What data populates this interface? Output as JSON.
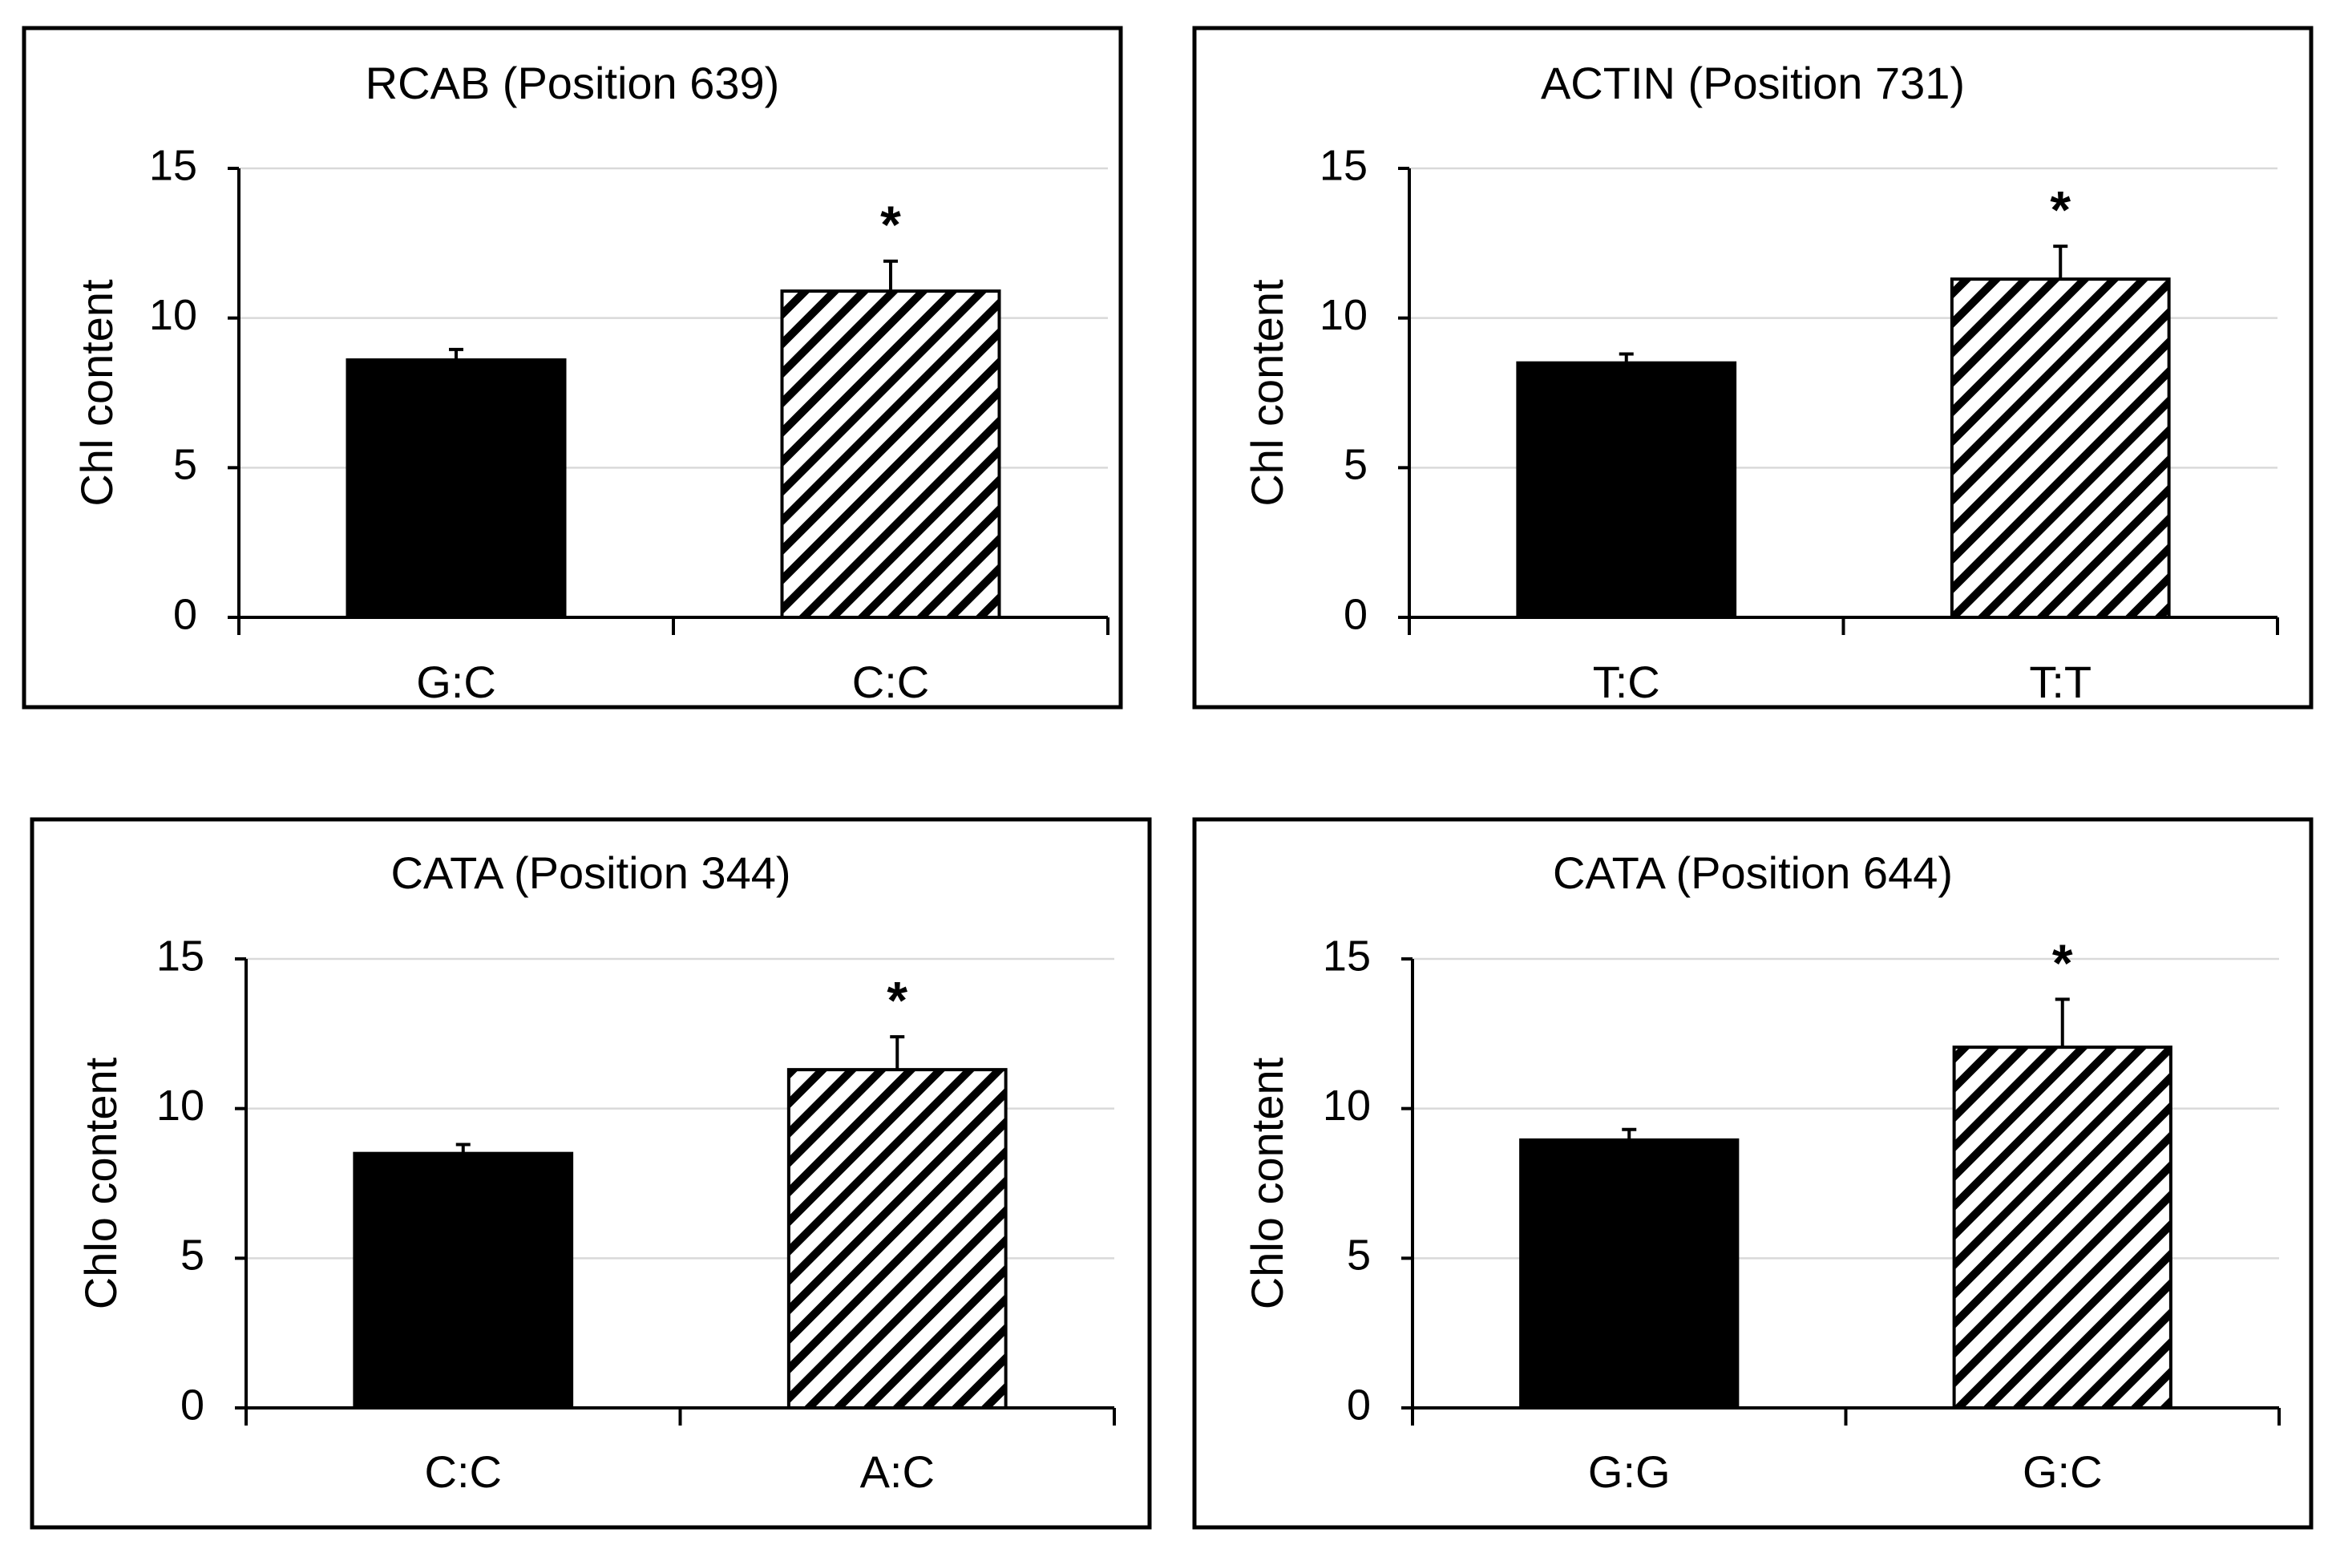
{
  "colors": {
    "solid_bar": "#000000",
    "hatch": "#000000",
    "grid": "#d9d9d9",
    "frame": "#000000",
    "background": "#ffffff"
  },
  "chart_data": [
    {
      "type": "bar",
      "title": "RCAB (Position 639)",
      "ylabel": "Chl content",
      "xlabel": "",
      "categories": [
        "G:C",
        "C:C"
      ],
      "values": [
        8.6,
        10.9
      ],
      "errors": [
        0.35,
        1.0
      ],
      "fills": [
        "solid",
        "hatched"
      ],
      "significance": [
        "",
        "*"
      ],
      "ylim": [
        0,
        15
      ],
      "yticks": [
        0,
        5,
        10,
        15
      ],
      "grid": true
    },
    {
      "type": "bar",
      "title": "ACTIN (Position 731)",
      "ylabel": "Chl content",
      "xlabel": "",
      "categories": [
        "T:C",
        "T:T"
      ],
      "values": [
        8.5,
        11.3
      ],
      "errors": [
        0.3,
        1.1
      ],
      "fills": [
        "solid",
        "hatched"
      ],
      "significance": [
        "",
        "*"
      ],
      "ylim": [
        0,
        15
      ],
      "yticks": [
        0,
        5,
        10,
        15
      ],
      "grid": true
    },
    {
      "type": "bar",
      "title": "CATA (Position 344)",
      "ylabel": "Chlo content",
      "xlabel": "",
      "categories": [
        "C:C",
        "A:C"
      ],
      "values": [
        8.5,
        11.3
      ],
      "errors": [
        0.3,
        1.1
      ],
      "fills": [
        "solid",
        "hatched"
      ],
      "significance": [
        "",
        "*"
      ],
      "ylim": [
        0,
        15
      ],
      "yticks": [
        0,
        5,
        10,
        15
      ],
      "grid": true
    },
    {
      "type": "bar",
      "title": "CATA (Position 644)",
      "ylabel": "Chlo content",
      "xlabel": "",
      "categories": [
        "G:G",
        "G:C"
      ],
      "values": [
        8.95,
        12.05
      ],
      "errors": [
        0.35,
        1.6
      ],
      "fills": [
        "solid",
        "hatched"
      ],
      "significance": [
        "",
        "*"
      ],
      "ylim": [
        0,
        15
      ],
      "yticks": [
        0,
        5,
        10,
        15
      ],
      "grid": true
    }
  ]
}
